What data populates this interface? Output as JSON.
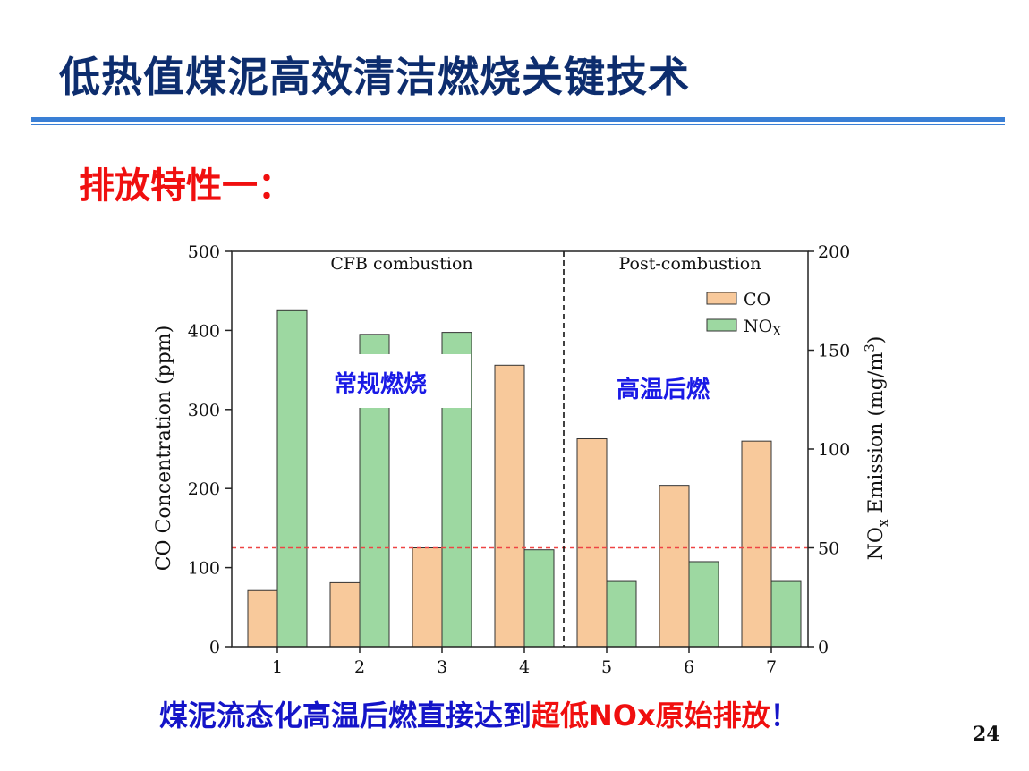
{
  "slide": {
    "title": "低热值煤泥高效清洁燃烧关键技术",
    "section_heading": "排放特性一：",
    "conclusion_part1": "煤泥流态化高温后燃直接达到",
    "conclusion_part2": "超低NOx原始排放",
    "conclusion_part3": "！",
    "page_number": "24"
  },
  "colors": {
    "title": "#0d2d6e",
    "rule": "#3a7fd5",
    "heading_red": "#f00f0f",
    "conclusion_blue": "#1414c8",
    "co_fill": "#f8c99b",
    "nox_fill": "#9dd8a1",
    "bar_stroke": "#333333",
    "reference_line": "#ee4444",
    "annotation_text": "#1a1ae6"
  },
  "chart_data": {
    "type": "bar",
    "categories": [
      "1",
      "2",
      "3",
      "4",
      "5",
      "6",
      "7"
    ],
    "series": [
      {
        "name": "CO",
        "axis": "left",
        "color": "#f8c99b",
        "values": [
          71,
          81,
          125,
          356,
          263,
          204,
          260
        ]
      },
      {
        "name": "NOx",
        "axis": "right",
        "color": "#9dd8a1",
        "values": [
          170,
          158,
          159,
          49,
          33,
          43,
          33
        ]
      }
    ],
    "y_left": {
      "label": "CO Concentration (ppm)",
      "range": [
        0,
        500
      ],
      "ticks": [
        "0",
        "100",
        "200",
        "300",
        "400",
        "500"
      ]
    },
    "y_right": {
      "label_main": "NO",
      "label_sub": "x",
      "label_rest": " Emission (mg/m",
      "label_sup": "3",
      "label_end": ")",
      "range": [
        0,
        200
      ],
      "ticks": [
        "0",
        "50",
        "100",
        "150",
        "200"
      ]
    },
    "regions": [
      {
        "label": "CFB combustion",
        "annotation": "常规燃烧"
      },
      {
        "label": "Post-combustion",
        "annotation": "高温后燃"
      }
    ],
    "region_divider_after_category": "4",
    "reference_line": {
      "axis": "right",
      "value": 50,
      "style": "dashed"
    },
    "legend": {
      "position": "top-right",
      "items": [
        {
          "main": "CO",
          "sub": ""
        },
        {
          "main": "NO",
          "sub": "X"
        }
      ]
    },
    "grid": false
  }
}
